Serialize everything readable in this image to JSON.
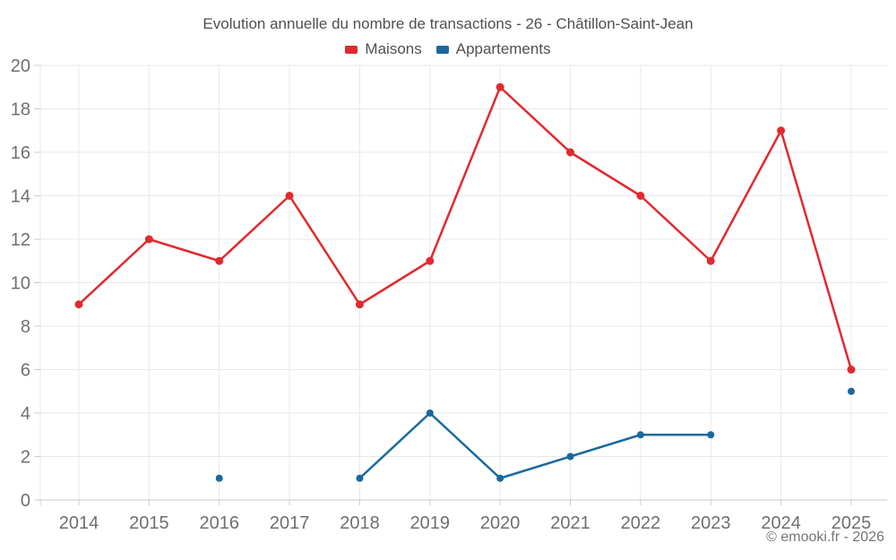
{
  "chart_data": {
    "type": "line",
    "title": "Evolution annuelle du nombre de transactions - 26 - Châtillon-Saint-Jean",
    "categories": [
      "2014",
      "2015",
      "2016",
      "2017",
      "2018",
      "2019",
      "2020",
      "2021",
      "2022",
      "2023",
      "2024",
      "2025"
    ],
    "series": [
      {
        "name": "Maisons",
        "color": "#e02a2f",
        "values": [
          9,
          12,
          11,
          14,
          9,
          11,
          19,
          16,
          14,
          11,
          17,
          6
        ]
      },
      {
        "name": "Appartements",
        "color": "#1a699e",
        "values": [
          null,
          null,
          1,
          null,
          1,
          4,
          1,
          2,
          3,
          3,
          null,
          5
        ]
      }
    ],
    "xlabel": "",
    "ylabel": "",
    "ylim": [
      0,
      20
    ],
    "ytick_step": 2,
    "grid": true,
    "legend_position": "top"
  },
  "footer": {
    "copyright": "© emooki.fr - 2026"
  },
  "theme": {
    "background": "#ffffff",
    "grid_color": "#e8e8e8",
    "axis_color": "#cccccc",
    "title_color": "#4f4f4f",
    "legend_text_color": "#4f4f4f",
    "tick_label_color": "#6f6f6f",
    "footer_color": "#757575"
  }
}
